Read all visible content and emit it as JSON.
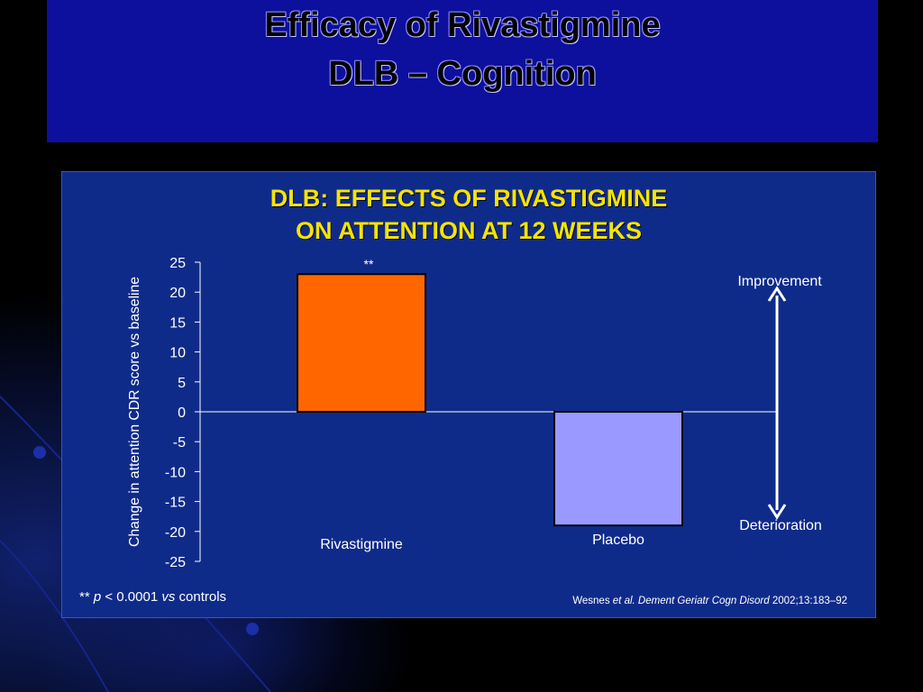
{
  "slide": {
    "title_line1": "Efficacy of Rivastigmine",
    "title_line2": "DLB – Cognition"
  },
  "colors": {
    "background": "#000000",
    "banner": "#0d109c",
    "panel": "#0f2b8a",
    "chart_title": "#f5e400",
    "rivastigmine_bar": "#ff6600",
    "placebo_bar": "#9999ff",
    "text": "#ffffff"
  },
  "chart_data": {
    "type": "bar",
    "title_line1": "DLB: EFFECTS OF RIVASTIGMINE",
    "title_line2": "ON ATTENTION AT 12 WEEKS",
    "ylabel": "Change in attention CDR score vs baseline",
    "xlabel": "",
    "ylim": [
      -25,
      25
    ],
    "yticks": [
      "25",
      "20",
      "15",
      "10",
      "5",
      "0",
      "-5",
      "-10",
      "-15",
      "-20",
      "-25"
    ],
    "categories": [
      "Rivastigmine",
      "Placebo"
    ],
    "values": [
      23,
      -19
    ],
    "bar_colors": [
      "#ff6600",
      "#9999ff"
    ],
    "significance": "**",
    "arrow_labels": {
      "up": "Improvement",
      "down": "Deterioration"
    }
  },
  "footnote": {
    "stars": "**",
    "p": "p",
    "threshold": "< 0.0001",
    "vs": "vs",
    "rest": "controls"
  },
  "citation": {
    "author": "Wesnes",
    "etal": "et al.",
    "journal": "Dement Geriatr Cogn Disord",
    "ref": "2002;13:183–92"
  }
}
